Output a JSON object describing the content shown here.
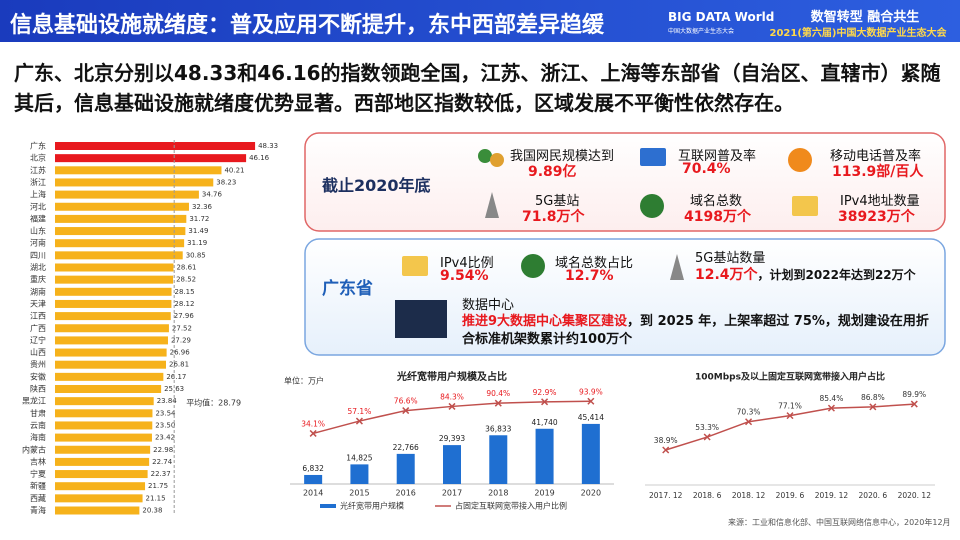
{
  "header": {
    "title": "信息基础设施就绪度：普及应用不断提升，东中西部差异趋缓",
    "logo": "BIG DATA World",
    "logo_sub": "中国大数据产业生态大会",
    "slogan": "数智转型 融合共生",
    "event": "2021(第六届)中国大数据产业生态大会"
  },
  "summary": "广东、北京分别以48.33和46.16的指数领跑全国，江苏、浙江、上海等东部省（自治区、直辖市）紧随其后，信息基础设施就绪度优势显著。西部地区指数较低，区域发展不平衡性依然存在。",
  "national": {
    "title": "截止2020年底",
    "items": [
      {
        "label": "我国网民规模达到",
        "value": "9.89亿"
      },
      {
        "label": "互联网普及率",
        "value": "70.4%"
      },
      {
        "label": "移动电话普及率",
        "value": "113.9部/百人"
      },
      {
        "label": "5G基站",
        "value": "71.8万个"
      },
      {
        "label": "域名总数",
        "value": "4198万个"
      },
      {
        "label": "IPv4地址数量",
        "value": "38923万个"
      }
    ]
  },
  "guangdong": {
    "title": "广东省",
    "items": [
      {
        "label": "IPv4比例",
        "value": "9.54%"
      },
      {
        "label": "域名总数占比",
        "value": "12.7%"
      },
      {
        "label": "5G基站数量",
        "value": "12.4万个",
        "note": "，计划到2022年达到22万个"
      }
    ],
    "datacenter": {
      "label": "数据中心",
      "highlight": "推进9大数据中心集聚区建设",
      "text": "，到 2025 年，上架率超过 75%，规划建设在用折合标准机架数累计约100万个"
    }
  },
  "chart_data": [
    {
      "type": "barh",
      "categories": [
        "广东",
        "北京",
        "江苏",
        "浙江",
        "上海",
        "河北",
        "福建",
        "山东",
        "河南",
        "四川",
        "湖北",
        "重庆",
        "湖南",
        "天津",
        "江西",
        "广西",
        "辽宁",
        "山西",
        "贵州",
        "安徽",
        "陕西",
        "黑龙江",
        "甘肃",
        "云南",
        "海南",
        "内蒙古",
        "吉林",
        "宁夏",
        "新疆",
        "西藏",
        "青海"
      ],
      "values": [
        48.33,
        46.16,
        40.21,
        38.23,
        34.76,
        32.36,
        31.72,
        31.49,
        31.19,
        30.85,
        28.61,
        28.52,
        28.15,
        28.12,
        27.96,
        27.52,
        27.29,
        26.96,
        26.81,
        26.17,
        25.63,
        23.84,
        23.54,
        23.5,
        23.42,
        22.98,
        22.74,
        22.37,
        21.75,
        21.15,
        20.38
      ],
      "value_labels": [
        "48.33",
        "46.16",
        "40.21",
        "38.23",
        "34.76",
        "32.36",
        "31.72",
        "31.49",
        "31.19",
        "30.85",
        "28.61",
        "28.52",
        "28.15",
        "28.12",
        "27.96",
        "27.52",
        "27.29",
        "26.96",
        "26.81",
        "26.17",
        "25.63",
        "23.84",
        "23.54",
        "23.50",
        "23.42",
        "22.98",
        "22.74",
        "22.37",
        "21.75",
        "21.15",
        "20.38"
      ],
      "colors": [
        "#e8191e",
        "#e8191e",
        "#f6b21b",
        "#f6b21b",
        "#f6b21b",
        "#f6b21b",
        "#f6b21b",
        "#f6b21b",
        "#f6b21b",
        "#f6b21b",
        "#f6b21b",
        "#f6b21b",
        "#f6b21b",
        "#f6b21b",
        "#f6b21b",
        "#f6b21b",
        "#f6b21b",
        "#f6b21b",
        "#f6b21b",
        "#f6b21b",
        "#f6b21b",
        "#f6b21b",
        "#f6b21b",
        "#f6b21b",
        "#f6b21b",
        "#f6b21b",
        "#f6b21b",
        "#f6b21b",
        "#f6b21b",
        "#f6b21b",
        "#f6b21b"
      ],
      "xlim": [
        0,
        50
      ],
      "average": 28.79,
      "average_label": "平均值：28.79"
    },
    {
      "type": "bar",
      "title": "光纤宽带用户规模及占比",
      "unit": "单位：万户",
      "categories": [
        "2014",
        "2015",
        "2016",
        "2017",
        "2018",
        "2019",
        "2020"
      ],
      "series": [
        {
          "name": "光纤宽带用户规模",
          "color": "#1f6fd1",
          "values": [
            6832,
            14825,
            22766,
            29393,
            36833,
            41740,
            45414
          ],
          "value_labels": [
            "6,832",
            "14,825",
            "22,766",
            "29,393",
            "36,833",
            "41,740",
            "45,414"
          ]
        },
        {
          "name": "占固定互联网宽带接入用户比例",
          "color": "#c0504d",
          "type": "line",
          "axis": "y2",
          "values": [
            34.1,
            57.1,
            76.6,
            84.3,
            90.4,
            92.9,
            93.9
          ],
          "value_labels": [
            "34.1%",
            "57.1%",
            "76.6%",
            "84.3%",
            "90.4%",
            "92.9%",
            "93.9%"
          ]
        }
      ],
      "ylim": [
        0,
        65000
      ],
      "y2lim": [
        -60,
        100
      ]
    },
    {
      "type": "line",
      "title": "100Mbps及以上固定互联网宽带接入用户占比",
      "categories": [
        "2017. 12",
        "2018. 6",
        "2018. 12",
        "2019. 6",
        "2019. 12",
        "2020. 6",
        "2020. 12"
      ],
      "values": [
        38.9,
        53.3,
        70.3,
        77.1,
        85.4,
        86.8,
        89.9
      ],
      "value_labels": [
        "38.9%",
        "53.3%",
        "70.3%",
        "77.1%",
        "85.4%",
        "86.8%",
        "89.9%"
      ],
      "color": "#c0504d",
      "ylim": [
        0,
        100
      ]
    }
  ],
  "source": "来源：工业和信息化部、中国互联网络信息中心，2020年12月"
}
